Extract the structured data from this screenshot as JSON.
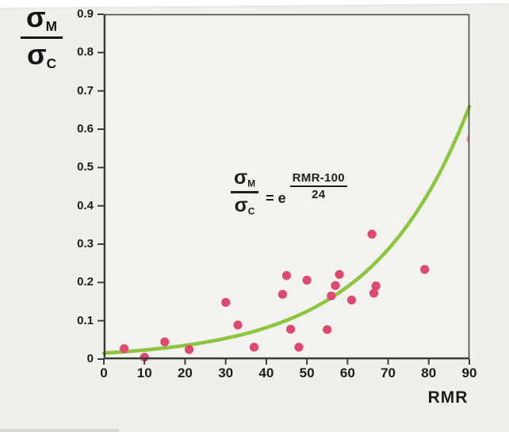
{
  "page": {
    "background_color": "#f1efea",
    "paper_edge_color": "#ffffff"
  },
  "y_axis_title": {
    "sigma": "σ",
    "sub_top": "M",
    "sub_bottom": "C"
  },
  "x_axis_title": "RMR",
  "equation": {
    "sigma": "σ",
    "sub_top": "M",
    "sub_bottom": "C",
    "equals_e": "= e",
    "exponent_numerator": "RMR-100",
    "exponent_denominator": "24"
  },
  "chart_data": {
    "type": "scatter",
    "title": "",
    "xlabel": "RMR",
    "ylabel": "σM/σC",
    "xlim": [
      0,
      90
    ],
    "ylim": [
      0,
      0.9
    ],
    "x_tick_labels": [
      "0",
      "10",
      "20",
      "30",
      "40",
      "50",
      "60",
      "70",
      "80",
      "90"
    ],
    "y_tick_labels": [
      "0",
      "0.1",
      "0.2",
      "0.3",
      "0.4",
      "0.5",
      "0.6",
      "0.7",
      "0.8",
      "0.9"
    ],
    "grid": false,
    "legend": null,
    "fit_curve": {
      "label": "σM/σC = e^((RMR-100)/24)",
      "formula": "exp((RMR-100)/24)",
      "exp_offset": -100,
      "exp_divisor": 24,
      "color": "#8bc63e",
      "x_range": [
        0,
        90
      ]
    },
    "points_color": "#dc4a70",
    "points": [
      {
        "x": 5,
        "y": 0.027
      },
      {
        "x": 10,
        "y": 0.005
      },
      {
        "x": 15,
        "y": 0.045
      },
      {
        "x": 21,
        "y": 0.025
      },
      {
        "x": 30,
        "y": 0.148
      },
      {
        "x": 33,
        "y": 0.089
      },
      {
        "x": 37,
        "y": 0.031
      },
      {
        "x": 44,
        "y": 0.169
      },
      {
        "x": 45,
        "y": 0.218
      },
      {
        "x": 46,
        "y": 0.078
      },
      {
        "x": 48,
        "y": 0.031
      },
      {
        "x": 50,
        "y": 0.206
      },
      {
        "x": 55,
        "y": 0.077
      },
      {
        "x": 56,
        "y": 0.165
      },
      {
        "x": 57,
        "y": 0.192
      },
      {
        "x": 58,
        "y": 0.221
      },
      {
        "x": 61,
        "y": 0.154
      },
      {
        "x": 66,
        "y": 0.326
      },
      {
        "x": 66.5,
        "y": 0.172
      },
      {
        "x": 67,
        "y": 0.191
      },
      {
        "x": 79,
        "y": 0.234
      }
    ],
    "edge_point": {
      "x": 90,
      "y": 0.575
    }
  }
}
